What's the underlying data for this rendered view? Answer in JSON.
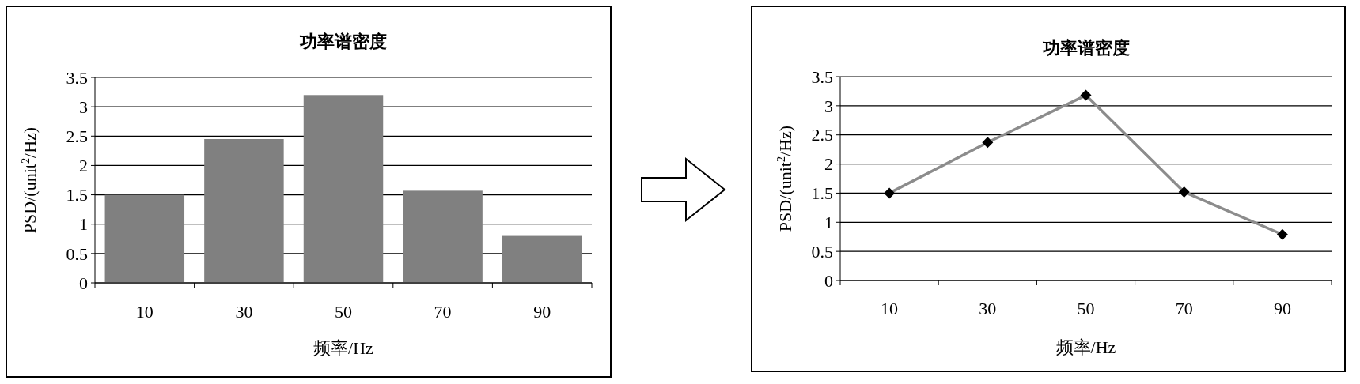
{
  "chart_data": [
    {
      "type": "bar",
      "title": "功率谱密度",
      "xlabel": "频率/Hz",
      "ylabel": "PSD/(unit$^{2}$/Hz)",
      "categories": [
        "10",
        "30",
        "50",
        "70",
        "90"
      ],
      "values": [
        1.5,
        2.45,
        3.2,
        1.57,
        0.8
      ],
      "color": "#808080",
      "ylim": [
        0,
        3.5
      ],
      "yticks": [
        0,
        0.5,
        1,
        1.5,
        2,
        2.5,
        3,
        3.5
      ],
      "grid": "y"
    },
    {
      "type": "line",
      "title": "功率谱密度",
      "xlabel": "频率/Hz",
      "ylabel": "PSD/(unit$^{2}$/Hz)",
      "categories": [
        "10",
        "30",
        "50",
        "70",
        "90"
      ],
      "series": [
        {
          "color": "#8c8c8c",
          "values": [
            1.5,
            2.37,
            3.18,
            1.52,
            0.79
          ]
        }
      ],
      "marker": "diamond",
      "line_style": "solid",
      "ylim": [
        0,
        3.5
      ],
      "yticks": [
        0,
        0.5,
        1,
        1.5,
        2,
        2.5,
        3,
        3.5
      ],
      "grid": "y"
    }
  ]
}
